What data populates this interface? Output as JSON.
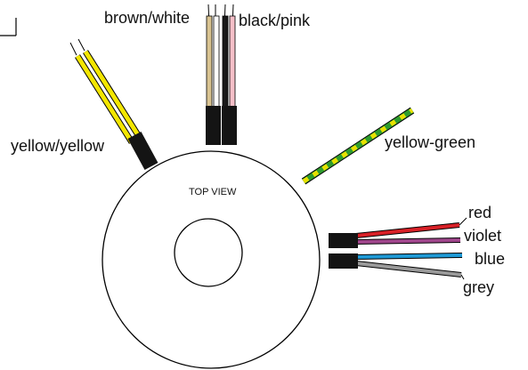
{
  "diagram": {
    "view_label": "TOP VIEW",
    "colors": {
      "outline": "#000000",
      "sleeve": "#141414",
      "brown_white_left": "#d9c391",
      "brown_white_right": "#ffffff",
      "black_pink_left": "#1a1a1a",
      "black_pink_right": "#f4bfc8",
      "yellow_yellow": "#f3e600",
      "yellow_green_base": "#2e9b2e",
      "yellow_green_stripe": "#e8e000",
      "red": "#d82027",
      "violet": "#a0468c",
      "blue": "#1f9ad6",
      "grey": "#9a9a9a"
    },
    "wires": [
      {
        "id": "brown-white",
        "label": "brown/white"
      },
      {
        "id": "black-pink",
        "label": "black/pink"
      },
      {
        "id": "yellow-yellow",
        "label": "yellow/yellow"
      },
      {
        "id": "yellow-green",
        "label": "yellow-green"
      },
      {
        "id": "red",
        "label": "red"
      },
      {
        "id": "violet",
        "label": "violet"
      },
      {
        "id": "blue",
        "label": "blue"
      },
      {
        "id": "grey",
        "label": "grey"
      }
    ]
  }
}
